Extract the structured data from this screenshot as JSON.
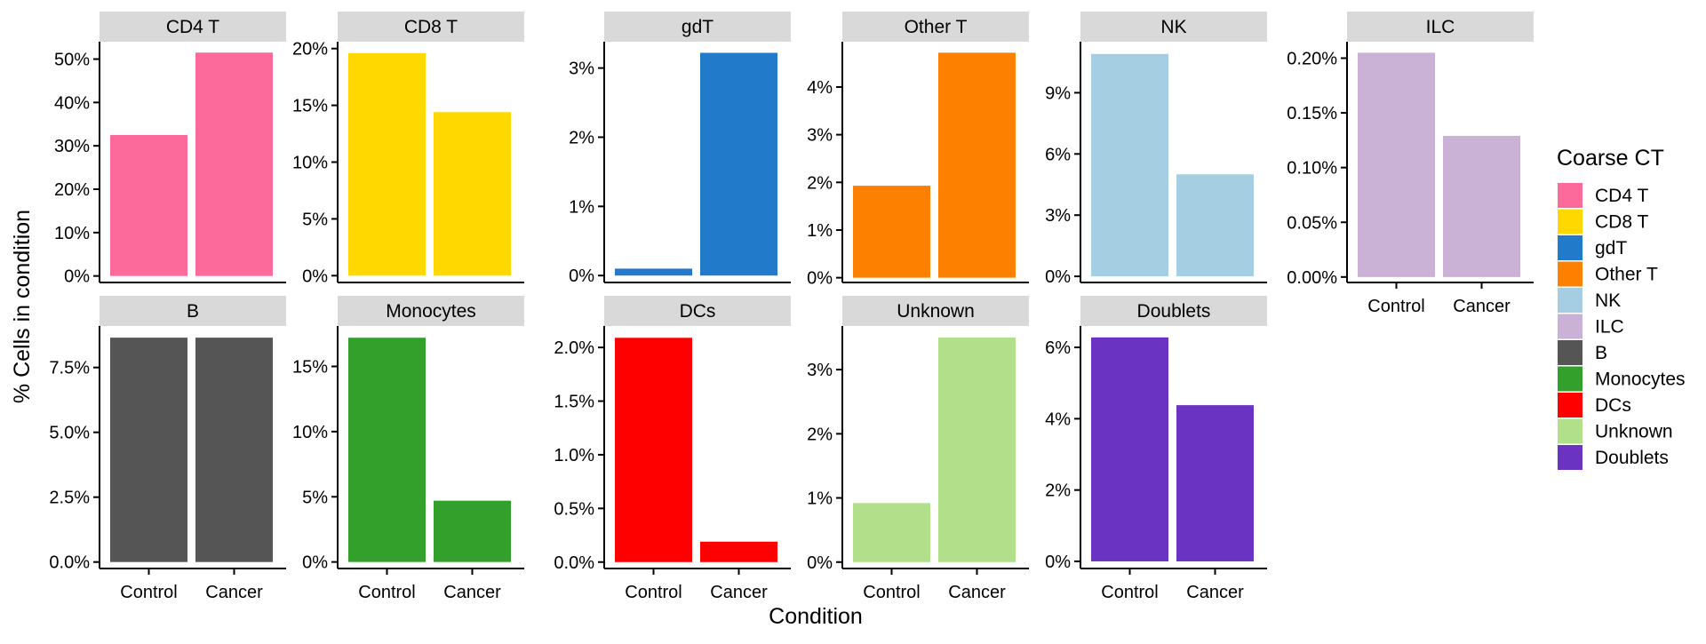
{
  "chart_data": {
    "type": "bar",
    "layout": "faceted",
    "categories": [
      "Control",
      "Cancer"
    ],
    "xlabel": "Condition",
    "ylabel": "% Cells in condition",
    "legend": {
      "title": "Coarse CT",
      "position": "right",
      "entries": [
        {
          "name": "CD4 T",
          "color": "#FC6A9B"
        },
        {
          "name": "CD8 T",
          "color": "#FFD800"
        },
        {
          "name": "gdT",
          "color": "#227ACB"
        },
        {
          "name": "Other T",
          "color": "#FE8000"
        },
        {
          "name": "NK",
          "color": "#A6CEE3"
        },
        {
          "name": "ILC",
          "color": "#CAB2D6"
        },
        {
          "name": "B",
          "color": "#555555"
        },
        {
          "name": "Monocytes",
          "color": "#33A02C"
        },
        {
          "name": "DCs",
          "color": "#FF0000"
        },
        {
          "name": "Unknown",
          "color": "#B2DF8A"
        },
        {
          "name": "Doublets",
          "color": "#6A33C2"
        }
      ]
    },
    "panels": [
      {
        "name": "CD4 T",
        "color": "#FC6A9B",
        "values": [
          32.5,
          51.5
        ],
        "yticks": [
          0,
          10,
          20,
          30,
          40,
          50
        ],
        "ytick_labels": [
          "0%",
          "10%",
          "20%",
          "30%",
          "40%",
          "50%"
        ],
        "ylim": [
          -1.5,
          54
        ],
        "show_x_labels": false
      },
      {
        "name": "CD8 T",
        "color": "#FFD800",
        "values": [
          19.6,
          14.4
        ],
        "yticks": [
          0,
          5,
          10,
          15,
          20
        ],
        "ytick_labels": [
          "0%",
          "5%",
          "10%",
          "15%",
          "20%"
        ],
        "ylim": [
          -0.6,
          20.6
        ],
        "show_x_labels": false
      },
      {
        "name": "gdT",
        "color": "#227ACB",
        "values": [
          0.1,
          3.22
        ],
        "yticks": [
          0,
          1,
          2,
          3
        ],
        "ytick_labels": [
          "0%",
          "1%",
          "2%",
          "3%"
        ],
        "ylim": [
          -0.1,
          3.38
        ],
        "show_x_labels": false
      },
      {
        "name": "Other T",
        "color": "#FE8000",
        "values": [
          1.93,
          4.72
        ],
        "yticks": [
          0,
          1,
          2,
          3,
          4
        ],
        "ytick_labels": [
          "0%",
          "1%",
          "2%",
          "3%",
          "4%"
        ],
        "ylim": [
          -0.1,
          4.95
        ],
        "show_x_labels": false
      },
      {
        "name": "NK",
        "color": "#A6CEE3",
        "values": [
          10.9,
          5.0
        ],
        "yticks": [
          0,
          3,
          6,
          9
        ],
        "ytick_labels": [
          "0%",
          "3%",
          "6%",
          "9%"
        ],
        "ylim": [
          -0.3,
          11.5
        ],
        "show_x_labels": false
      },
      {
        "name": "ILC",
        "color": "#CAB2D6",
        "values": [
          0.205,
          0.129
        ],
        "yticks": [
          0,
          0.05,
          0.1,
          0.15,
          0.2
        ],
        "ytick_labels": [
          "0.00%",
          "0.05%",
          "0.10%",
          "0.15%",
          "0.20%"
        ],
        "ylim": [
          -0.005,
          0.215
        ],
        "show_x_labels": true
      },
      {
        "name": "B",
        "color": "#555555",
        "values": [
          8.65,
          8.65
        ],
        "yticks": [
          0,
          2.5,
          5,
          7.5
        ],
        "ytick_labels": [
          "0.0%",
          "2.5%",
          "5.0%",
          "7.5%"
        ],
        "ylim": [
          -0.25,
          9.1
        ],
        "show_x_labels": true
      },
      {
        "name": "Monocytes",
        "color": "#33A02C",
        "values": [
          17.2,
          4.7
        ],
        "yticks": [
          0,
          5,
          10,
          15
        ],
        "ytick_labels": [
          "0%",
          "5%",
          "10%",
          "15%"
        ],
        "ylim": [
          -0.5,
          18.1
        ],
        "show_x_labels": true
      },
      {
        "name": "DCs",
        "color": "#FF0000",
        "values": [
          2.09,
          0.19
        ],
        "yticks": [
          0,
          0.5,
          1,
          1.5,
          2
        ],
        "ytick_labels": [
          "0.0%",
          "0.5%",
          "1.0%",
          "1.5%",
          "2.0%"
        ],
        "ylim": [
          -0.06,
          2.2
        ],
        "show_x_labels": true
      },
      {
        "name": "Unknown",
        "color": "#B2DF8A",
        "values": [
          0.92,
          3.5
        ],
        "yticks": [
          0,
          1,
          2,
          3
        ],
        "ytick_labels": [
          "0%",
          "1%",
          "2%",
          "3%"
        ],
        "ylim": [
          -0.1,
          3.68
        ],
        "show_x_labels": true
      },
      {
        "name": "Doublets",
        "color": "#6A33C2",
        "values": [
          6.28,
          4.38
        ],
        "yticks": [
          0,
          2,
          4,
          6
        ],
        "ytick_labels": [
          "0%",
          "2%",
          "4%",
          "6%"
        ],
        "ylim": [
          -0.2,
          6.6
        ],
        "show_x_labels": true
      }
    ]
  }
}
